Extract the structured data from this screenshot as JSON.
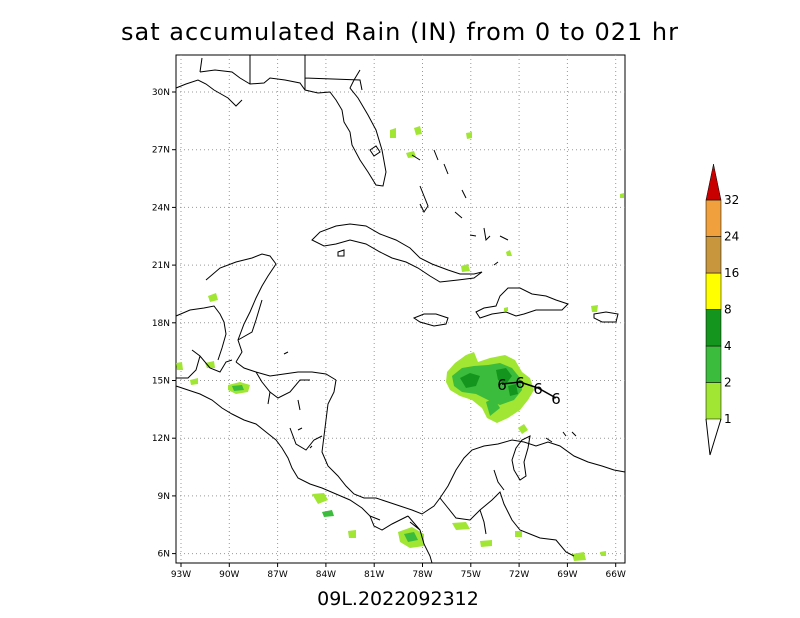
{
  "title": "sat accumulated Rain (IN) from 0 to 021 hr",
  "subtitle": "09L.2022092312",
  "lat_labels": [
    "30N",
    "27N",
    "24N",
    "21N",
    "18N",
    "15N",
    "12N",
    "9N",
    "6N"
  ],
  "lon_labels": [
    "93W",
    "90W",
    "87W",
    "84W",
    "81W",
    "78W",
    "75W",
    "72W",
    "69W",
    "66W"
  ],
  "colorbar": {
    "labels": [
      "1",
      "2",
      "4",
      "8",
      "16",
      "24",
      "32"
    ],
    "colors": [
      "#a0e632",
      "#3cbc3c",
      "#14961e",
      "#ffff00",
      "#c8963c",
      "#f0a03c",
      "#c80000"
    ]
  },
  "storm_symbol": "6",
  "colors": {
    "land_outline": "#000000",
    "grid": "#999999"
  }
}
